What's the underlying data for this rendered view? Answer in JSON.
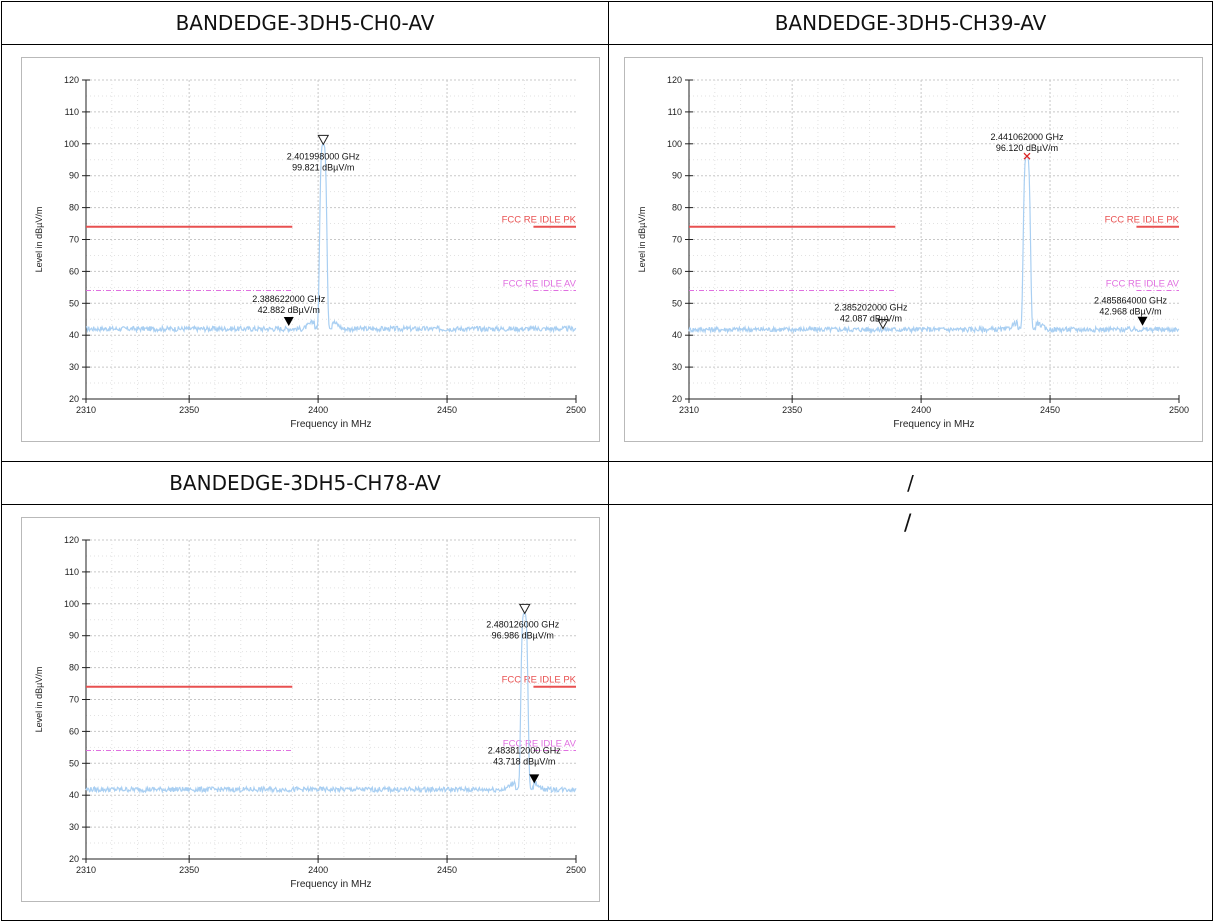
{
  "headers": {
    "top_left": "BANDEDGE-3DH5-CH0-AV",
    "top_right": "BANDEDGE-3DH5-CH39-AV",
    "bottom_left": "BANDEDGE-3DH5-CH78-AV",
    "bottom_right": "/",
    "bottom_right_body": "/"
  },
  "colors": {
    "trace": "#a9cff2",
    "limit_pk": "#e85050",
    "limit_av": "#e070e0",
    "grid": "#c8c8c8"
  },
  "chart_data": [
    {
      "type": "line",
      "xlabel": "Frequency in MHz",
      "ylabel": "Level in dBµV/m",
      "xlim": [
        2310,
        2500
      ],
      "ylim": [
        20,
        120
      ],
      "x_ticks": [
        "2310",
        "2350",
        "2400",
        "2450",
        "2500"
      ],
      "y_ticks": [
        "20",
        "30",
        "40",
        "50",
        "60",
        "70",
        "80",
        "90",
        "100",
        "110",
        "120"
      ],
      "grid": true,
      "noise_floor": 42,
      "peak": {
        "center_mhz": 2402,
        "level": 99.8,
        "width_mhz": 3.5
      },
      "limits": [
        {
          "name": "FCC RE IDLE PK",
          "level": 74,
          "segments": [
            [
              2310,
              2390
            ],
            [
              2483.5,
              2500
            ]
          ]
        },
        {
          "name": "FCC RE IDLE AV",
          "level": 54,
          "segments": [
            [
              2310,
              2390
            ],
            [
              2483.5,
              2500
            ]
          ]
        }
      ],
      "markers": [
        {
          "freq_mhz": 2401.998,
          "level": 99.821,
          "freq_label": "2.401998000 GHz",
          "level_label": "99.821 dBµV/m",
          "style": "open"
        },
        {
          "freq_mhz": 2388.622,
          "level": 42.882,
          "freq_label": "2.388622000 GHz",
          "level_label": "42.882 dBµV/m",
          "style": "filled"
        }
      ]
    },
    {
      "type": "line",
      "xlabel": "Frequency in MHz",
      "ylabel": "Level in dBµV/m",
      "xlim": [
        2310,
        2500
      ],
      "ylim": [
        20,
        120
      ],
      "x_ticks": [
        "2310",
        "2350",
        "2400",
        "2450",
        "2500"
      ],
      "y_ticks": [
        "20",
        "30",
        "40",
        "50",
        "60",
        "70",
        "80",
        "90",
        "100",
        "110",
        "120"
      ],
      "grid": true,
      "noise_floor": 41.8,
      "peak": {
        "center_mhz": 2441,
        "level": 96.1,
        "width_mhz": 3.5
      },
      "limits": [
        {
          "name": "FCC RE IDLE PK",
          "level": 74,
          "segments": [
            [
              2310,
              2390
            ],
            [
              2483.5,
              2500
            ]
          ]
        },
        {
          "name": "FCC RE IDLE AV",
          "level": 54,
          "segments": [
            [
              2310,
              2390
            ],
            [
              2483.5,
              2500
            ]
          ]
        }
      ],
      "markers": [
        {
          "freq_mhz": 2441.062,
          "level": 96.12,
          "freq_label": "2.441062000 GHz",
          "level_label": "96.120 dBµV/m",
          "style": "star"
        },
        {
          "freq_mhz": 2385.202,
          "level": 42.087,
          "freq_label": "2.385202000 GHz",
          "level_label": "42.087 dBµV/m",
          "style": "open"
        },
        {
          "freq_mhz": 2485.864,
          "level": 42.968,
          "freq_label": "2.485864000 GHz",
          "level_label": "42.968 dBµV/m",
          "style": "filled"
        }
      ]
    },
    {
      "type": "line",
      "xlabel": "Frequency in MHz",
      "ylabel": "Level in dBµV/m",
      "xlim": [
        2310,
        2500
      ],
      "ylim": [
        20,
        120
      ],
      "x_ticks": [
        "2310",
        "2350",
        "2400",
        "2450",
        "2500"
      ],
      "y_ticks": [
        "20",
        "30",
        "40",
        "50",
        "60",
        "70",
        "80",
        "90",
        "100",
        "110",
        "120"
      ],
      "grid": true,
      "noise_floor": 41.8,
      "peak": {
        "center_mhz": 2480,
        "level": 97,
        "width_mhz": 3.5
      },
      "limits": [
        {
          "name": "FCC RE IDLE PK",
          "level": 74,
          "segments": [
            [
              2310,
              2390
            ],
            [
              2483.5,
              2500
            ]
          ]
        },
        {
          "name": "FCC RE IDLE AV",
          "level": 54,
          "segments": [
            [
              2310,
              2390
            ],
            [
              2483.5,
              2500
            ]
          ]
        }
      ],
      "markers": [
        {
          "freq_mhz": 2480.126,
          "level": 96.986,
          "freq_label": "2.480126000 GHz",
          "level_label": "96.986 dBµV/m",
          "style": "open"
        },
        {
          "freq_mhz": 2483.812,
          "level": 43.718,
          "freq_label": "2.483812000 GHz",
          "level_label": "43.718 dBµV/m",
          "style": "filled"
        }
      ]
    }
  ]
}
